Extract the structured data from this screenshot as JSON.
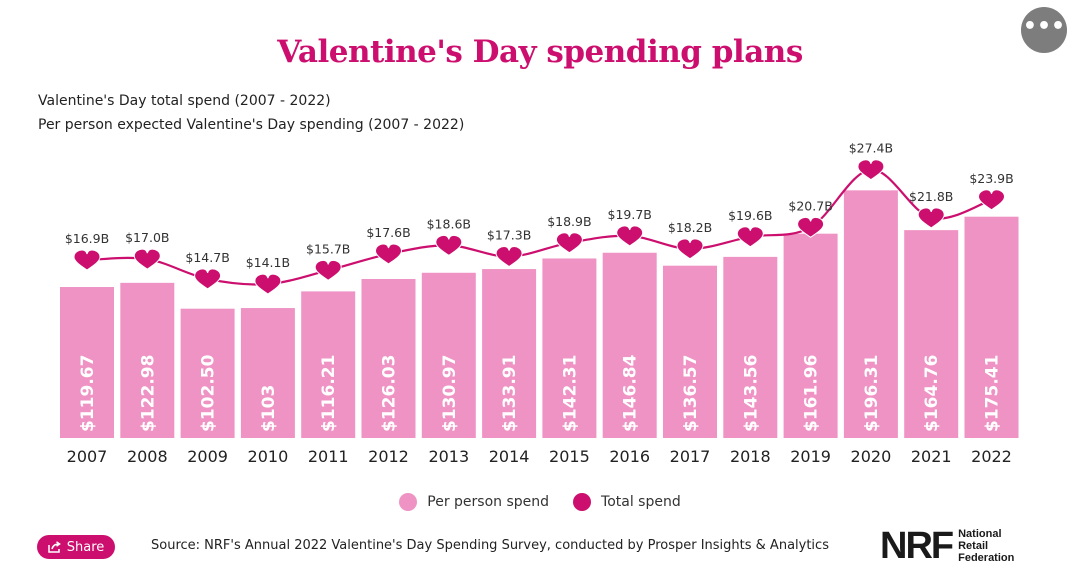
{
  "title": "Valentine's Day spending plans",
  "subtitle_1": "Valentine's Day total spend (2007 - 2022)",
  "subtitle_2": "Per person expected Valentine's Day spending (2007 - 2022)",
  "menu_icon": "ellipsis-icon",
  "legend": {
    "per_person": "Per person spend",
    "total": "Total spend"
  },
  "share": {
    "label": "Share",
    "icon": "share-icon"
  },
  "source": "Source: NRF's Annual 2022 Valentine's Day Spending Survey, conducted by Prosper Insights & Analytics",
  "logo": {
    "mark": "NRF",
    "line1": "National",
    "line2": "Retail",
    "line3": "Federation"
  },
  "colors": {
    "bar": "#ee93c4",
    "line": "#cc0f6e",
    "title": "#cc0f6e"
  },
  "chart_data": {
    "type": "bar",
    "categories": [
      "2007",
      "2008",
      "2009",
      "2010",
      "2011",
      "2012",
      "2013",
      "2014",
      "2015",
      "2016",
      "2017",
      "2018",
      "2019",
      "2020",
      "2021",
      "2022"
    ],
    "series": [
      {
        "name": "Per person spend",
        "type": "bar",
        "values": [
          119.67,
          122.98,
          102.5,
          103,
          116.21,
          126.03,
          130.97,
          133.91,
          142.31,
          146.84,
          136.57,
          143.56,
          161.96,
          196.31,
          164.76,
          175.41
        ],
        "labels": [
          "$119.67",
          "$122.98",
          "$102.50",
          "$103",
          "$116.21",
          "$126.03",
          "$130.97",
          "$133.91",
          "$142.31",
          "$146.84",
          "$136.57",
          "$143.56",
          "$161.96",
          "$196.31",
          "$164.76",
          "$175.41"
        ]
      },
      {
        "name": "Total spend",
        "type": "line",
        "values": [
          16.9,
          17.0,
          14.7,
          14.1,
          15.7,
          17.6,
          18.6,
          17.3,
          18.9,
          19.7,
          18.2,
          19.6,
          20.7,
          27.4,
          21.8,
          23.9
        ],
        "labels": [
          "$16.9B",
          "$17.0B",
          "$14.7B",
          "$14.1B",
          "$15.7B",
          "$17.6B",
          "$18.6B",
          "$17.3B",
          "$18.9B",
          "$19.7B",
          "$18.2B",
          "$19.6B",
          "$20.7B",
          "$27.4B",
          "$21.8B",
          "$23.9B"
        ]
      }
    ]
  }
}
